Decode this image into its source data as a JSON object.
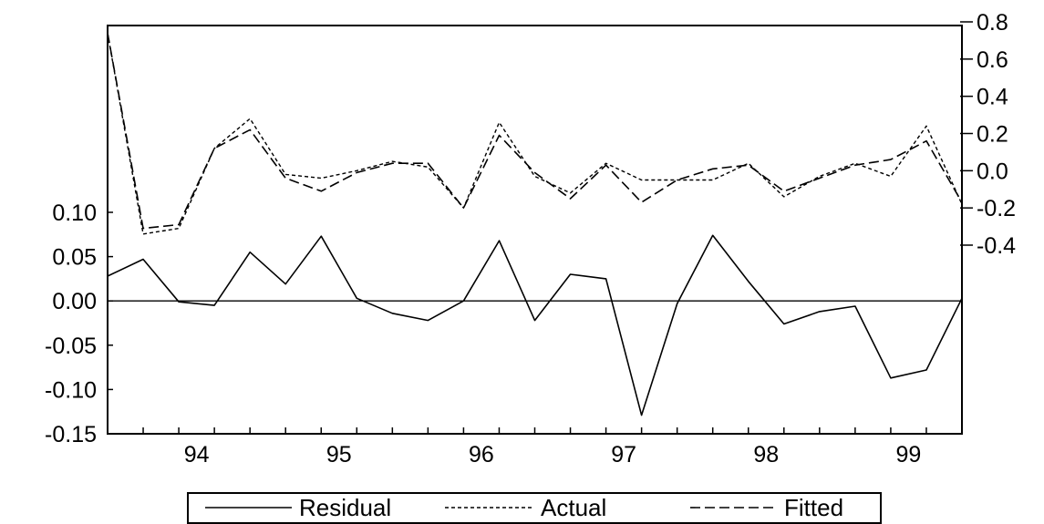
{
  "chart_data": {
    "type": "line",
    "x_tick_labels": [
      "94",
      "95",
      "96",
      "97",
      "98",
      "99"
    ],
    "x": [
      "93Q4",
      "94Q1",
      "94Q2",
      "94Q3",
      "94Q4",
      "95Q1",
      "95Q2",
      "95Q3",
      "95Q4",
      "96Q1",
      "96Q2",
      "96Q3",
      "96Q4",
      "97Q1",
      "97Q2",
      "97Q3",
      "97Q4",
      "98Q1",
      "98Q2",
      "98Q3",
      "98Q4",
      "99Q1",
      "99Q2",
      "99Q3",
      "99Q4"
    ],
    "left_axis": {
      "ylim": [
        -0.15,
        0.1
      ],
      "ticks": [
        "0.10",
        "0.05",
        "0.00",
        "-0.05",
        "-0.10",
        "-0.15"
      ]
    },
    "right_axis": {
      "ylim": [
        -0.4,
        0.8
      ],
      "ticks": [
        "0.8",
        "0.6",
        "0.4",
        "0.2",
        "0.0",
        "-0.2",
        "-0.4"
      ]
    },
    "series": [
      {
        "name": "Residual",
        "axis": "left",
        "style": "solid",
        "values": [
          0.028,
          0.047,
          -0.001,
          -0.005,
          0.055,
          0.019,
          0.073,
          0.003,
          -0.014,
          -0.022,
          0.0,
          0.068,
          -0.022,
          0.03,
          0.025,
          -0.129,
          -0.003,
          0.074,
          0.022,
          -0.026,
          -0.012,
          -0.006,
          -0.087,
          -0.078,
          0.003
        ]
      },
      {
        "name": "Actual",
        "axis": "right",
        "style": "short-dash",
        "values": [
          0.74,
          -0.34,
          -0.31,
          0.12,
          0.28,
          -0.02,
          -0.04,
          0.0,
          0.05,
          0.02,
          -0.2,
          0.26,
          -0.03,
          -0.12,
          0.04,
          -0.05,
          -0.05,
          -0.05,
          0.04,
          -0.14,
          -0.03,
          0.04,
          -0.03,
          0.24,
          -0.18
        ]
      },
      {
        "name": "Fitted",
        "axis": "right",
        "style": "long-dash",
        "values": [
          0.74,
          -0.31,
          -0.29,
          0.12,
          0.22,
          -0.04,
          -0.11,
          -0.01,
          0.04,
          0.04,
          -0.2,
          0.19,
          -0.01,
          -0.15,
          0.03,
          -0.17,
          -0.05,
          0.01,
          0.03,
          -0.11,
          -0.04,
          0.03,
          0.06,
          0.16,
          -0.17
        ]
      }
    ],
    "legend": {
      "position": "bottom-center",
      "entries": [
        "Residual",
        "Actual",
        "Fitted"
      ]
    },
    "zero_line": true
  }
}
